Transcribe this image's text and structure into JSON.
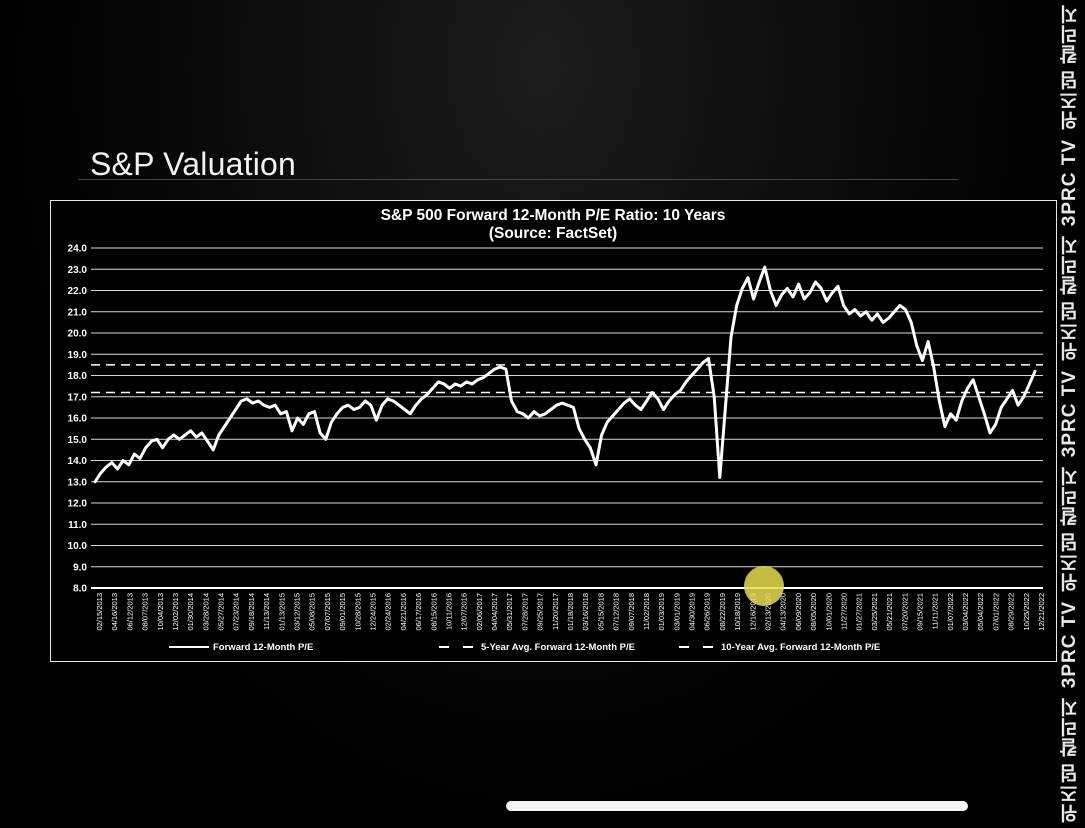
{
  "slide": {
    "title": "S&P Valuation"
  },
  "watermark": {
    "items": [
      "위즈덤 칼리지",
      "3PRC TV",
      "위즈덤 칼리지",
      "3PRC TV",
      "위즈덤 칼리지",
      "3PRC TV",
      "위즈덤 칼리지"
    ]
  },
  "colors": {
    "series": "#ffffff",
    "background": "#000000",
    "grid": "#e0e0e0",
    "touch": "#e6dc50"
  },
  "chart_data": {
    "type": "line",
    "title": "S&P 500 Forward 12-Month P/E Ratio: 10 Years",
    "subtitle": "(Source: FactSet)",
    "ylim": [
      8.0,
      24.0
    ],
    "grid": true,
    "legend_position": "bottom",
    "y_ticks": [
      "8.0",
      "9.0",
      "10.0",
      "11.0",
      "12.0",
      "13.0",
      "14.0",
      "15.0",
      "16.0",
      "17.0",
      "18.0",
      "19.0",
      "20.0",
      "21.0",
      "22.0",
      "23.0",
      "24.0"
    ],
    "x_ticks": [
      "02/15/2013",
      "04/16/2013",
      "06/12/2013",
      "08/07/2013",
      "10/04/2013",
      "12/02/2013",
      "01/30/2014",
      "03/28/2014",
      "05/27/2014",
      "07/23/2014",
      "09/18/2014",
      "11/13/2014",
      "01/13/2015",
      "03/12/2015",
      "05/08/2015",
      "07/07/2015",
      "09/01/2015",
      "10/28/2015",
      "12/24/2015",
      "02/24/2016",
      "04/21/2016",
      "06/17/2016",
      "08/15/2016",
      "10/11/2016",
      "12/07/2016",
      "02/06/2017",
      "04/04/2017",
      "05/31/2017",
      "07/28/2017",
      "09/25/2017",
      "11/20/2017",
      "01/18/2018",
      "03/16/2018",
      "05/15/2018",
      "07/12/2018",
      "09/07/2018",
      "11/02/2018",
      "01/03/2019",
      "03/01/2019",
      "04/30/2019",
      "06/26/2019",
      "08/22/2019",
      "10/18/2019",
      "12/16/2019",
      "02/13/2020",
      "04/13/2020",
      "06/09/2020",
      "08/05/2020",
      "10/01/2020",
      "11/27/2020",
      "01/27/2021",
      "03/25/2021",
      "05/21/2021",
      "07/20/2021",
      "09/15/2021",
      "11/11/2021",
      "01/07/2022",
      "03/04/2022",
      "05/04/2022",
      "07/01/2022",
      "08/29/2022",
      "10/25/2022",
      "12/21/2022"
    ],
    "series": [
      {
        "name": "Forward 12-Month P/E",
        "style": "solid",
        "points": [
          [
            0,
            13.0
          ],
          [
            1,
            13.4
          ],
          [
            2,
            13.7
          ],
          [
            3,
            13.9
          ],
          [
            4,
            13.6
          ],
          [
            5,
            14.0
          ],
          [
            6,
            13.8
          ],
          [
            7,
            14.3
          ],
          [
            8,
            14.1
          ],
          [
            9,
            14.6
          ],
          [
            10,
            14.9
          ],
          [
            11,
            15.0
          ],
          [
            12,
            14.6
          ],
          [
            13,
            15.0
          ],
          [
            14,
            15.2
          ],
          [
            15,
            15.0
          ],
          [
            16,
            15.2
          ],
          [
            17,
            15.4
          ],
          [
            18,
            15.1
          ],
          [
            19,
            15.3
          ],
          [
            20,
            14.9
          ],
          [
            21,
            14.5
          ],
          [
            22,
            15.2
          ],
          [
            23,
            15.6
          ],
          [
            24,
            16.0
          ],
          [
            25,
            16.4
          ],
          [
            26,
            16.8
          ],
          [
            27,
            16.9
          ],
          [
            28,
            16.7
          ],
          [
            29,
            16.8
          ],
          [
            30,
            16.6
          ],
          [
            31,
            16.5
          ],
          [
            32,
            16.6
          ],
          [
            33,
            16.2
          ],
          [
            34,
            16.3
          ],
          [
            35,
            15.4
          ],
          [
            36,
            16.0
          ],
          [
            37,
            15.7
          ],
          [
            38,
            16.2
          ],
          [
            39,
            16.3
          ],
          [
            40,
            15.3
          ],
          [
            41,
            15.0
          ],
          [
            42,
            15.8
          ],
          [
            43,
            16.2
          ],
          [
            44,
            16.5
          ],
          [
            45,
            16.6
          ],
          [
            46,
            16.4
          ],
          [
            47,
            16.5
          ],
          [
            48,
            16.8
          ],
          [
            49,
            16.6
          ],
          [
            50,
            15.9
          ],
          [
            51,
            16.6
          ],
          [
            52,
            16.9
          ],
          [
            53,
            16.8
          ],
          [
            54,
            16.6
          ],
          [
            55,
            16.4
          ],
          [
            56,
            16.2
          ],
          [
            57,
            16.6
          ],
          [
            58,
            16.9
          ],
          [
            59,
            17.1
          ],
          [
            60,
            17.4
          ],
          [
            61,
            17.7
          ],
          [
            62,
            17.6
          ],
          [
            63,
            17.4
          ],
          [
            64,
            17.6
          ],
          [
            65,
            17.5
          ],
          [
            66,
            17.7
          ],
          [
            67,
            17.6
          ],
          [
            68,
            17.8
          ],
          [
            69,
            17.9
          ],
          [
            70,
            18.1
          ],
          [
            71,
            18.3
          ],
          [
            72,
            18.4
          ],
          [
            73,
            18.3
          ],
          [
            74,
            16.8
          ],
          [
            75,
            16.3
          ],
          [
            76,
            16.2
          ],
          [
            77,
            16.0
          ],
          [
            78,
            16.3
          ],
          [
            79,
            16.1
          ],
          [
            80,
            16.2
          ],
          [
            81,
            16.4
          ],
          [
            82,
            16.6
          ],
          [
            83,
            16.7
          ],
          [
            84,
            16.6
          ],
          [
            85,
            16.5
          ],
          [
            86,
            15.5
          ],
          [
            87,
            15.0
          ],
          [
            88,
            14.6
          ],
          [
            89,
            13.8
          ],
          [
            90,
            15.2
          ],
          [
            91,
            15.8
          ],
          [
            92,
            16.1
          ],
          [
            93,
            16.4
          ],
          [
            94,
            16.7
          ],
          [
            95,
            16.9
          ],
          [
            96,
            16.6
          ],
          [
            97,
            16.4
          ],
          [
            98,
            16.8
          ],
          [
            99,
            17.2
          ],
          [
            100,
            16.9
          ],
          [
            101,
            16.4
          ],
          [
            102,
            16.8
          ],
          [
            103,
            17.1
          ],
          [
            104,
            17.3
          ],
          [
            105,
            17.7
          ],
          [
            106,
            18.0
          ],
          [
            107,
            18.3
          ],
          [
            108,
            18.6
          ],
          [
            109,
            18.8
          ],
          [
            110,
            17.0
          ],
          [
            111,
            13.2
          ],
          [
            112,
            16.5
          ],
          [
            113,
            19.8
          ],
          [
            114,
            21.3
          ],
          [
            115,
            22.1
          ],
          [
            116,
            22.6
          ],
          [
            117,
            21.6
          ],
          [
            118,
            22.4
          ],
          [
            119,
            23.1
          ],
          [
            120,
            22.0
          ],
          [
            121,
            21.3
          ],
          [
            122,
            21.8
          ],
          [
            123,
            22.1
          ],
          [
            124,
            21.7
          ],
          [
            125,
            22.3
          ],
          [
            126,
            21.6
          ],
          [
            127,
            21.9
          ],
          [
            128,
            22.4
          ],
          [
            129,
            22.1
          ],
          [
            130,
            21.5
          ],
          [
            131,
            21.9
          ],
          [
            132,
            22.2
          ],
          [
            133,
            21.3
          ],
          [
            134,
            20.9
          ],
          [
            135,
            21.1
          ],
          [
            136,
            20.8
          ],
          [
            137,
            21.0
          ],
          [
            138,
            20.6
          ],
          [
            139,
            20.9
          ],
          [
            140,
            20.5
          ],
          [
            141,
            20.7
          ],
          [
            142,
            21.0
          ],
          [
            143,
            21.3
          ],
          [
            144,
            21.1
          ],
          [
            145,
            20.5
          ],
          [
            146,
            19.4
          ],
          [
            147,
            18.7
          ],
          [
            148,
            19.6
          ],
          [
            149,
            18.4
          ],
          [
            150,
            16.8
          ],
          [
            151,
            15.6
          ],
          [
            152,
            16.2
          ],
          [
            153,
            15.9
          ],
          [
            154,
            16.8
          ],
          [
            155,
            17.4
          ],
          [
            156,
            17.8
          ],
          [
            157,
            17.0
          ],
          [
            158,
            16.2
          ],
          [
            159,
            15.3
          ],
          [
            160,
            15.7
          ],
          [
            161,
            16.5
          ],
          [
            162,
            16.9
          ],
          [
            163,
            17.3
          ],
          [
            164,
            16.6
          ],
          [
            165,
            17.0
          ],
          [
            166,
            17.6
          ],
          [
            167,
            18.2
          ]
        ]
      },
      {
        "name": "5-Year Avg. Forward 12-Month P/E",
        "style": "dashed",
        "value": 18.5
      },
      {
        "name": "10-Year Avg. Forward 12-Month P/E",
        "style": "dashed",
        "value": 17.2
      }
    ]
  }
}
